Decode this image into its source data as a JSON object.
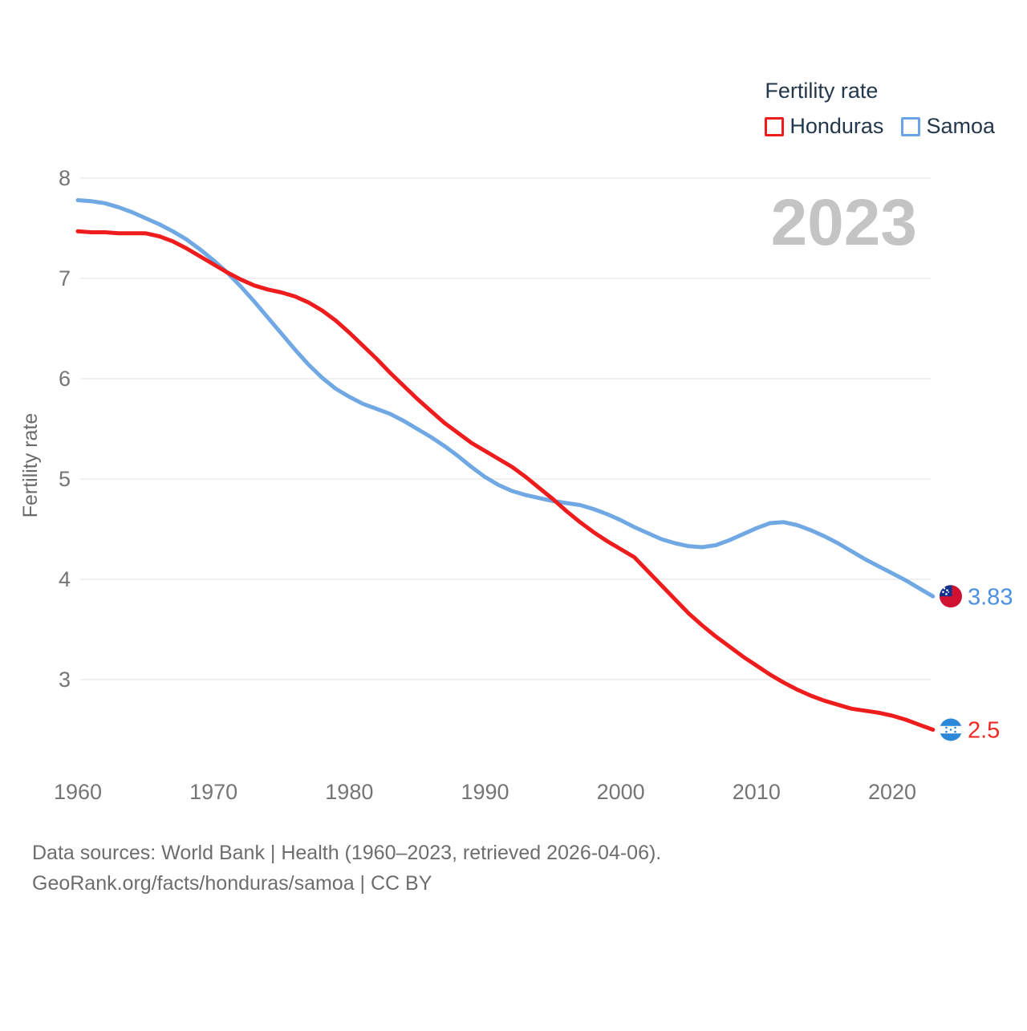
{
  "page": {
    "background": "#ffffff"
  },
  "legend": {
    "title": "Fertility rate",
    "items": [
      {
        "label": "Honduras",
        "color": "#ee1c1c"
      },
      {
        "label": "Samoa",
        "color": "#6aa4e6"
      }
    ]
  },
  "watermark": "2023",
  "footer": {
    "line1": "Data sources: World Bank | Health (1960–2023, retrieved 2026-04-06).",
    "line2": "GeoRank.org/facts/honduras/samoa | CC BY"
  },
  "colors": {
    "gridline": "#ebebeb",
    "tick": "#757575",
    "axis_title": "#6b6b6b",
    "watermark": "#c4c4c4",
    "legend_text": "#24384c",
    "footer_text": "#6d6d6d"
  },
  "chart_data": {
    "type": "line",
    "title": "Fertility rate",
    "ylabel": "Fertility rate",
    "xlabel": "",
    "grid": "horizontal",
    "legend_position": "top-right",
    "year_label": "2023",
    "xlim": [
      1960,
      2023
    ],
    "ylim": [
      2.3,
      8.1
    ],
    "yticks": [
      3,
      4,
      5,
      6,
      7,
      8
    ],
    "xticks": [
      1960,
      1970,
      1980,
      1990,
      2000,
      2010,
      2020
    ],
    "x": [
      1960,
      1961,
      1962,
      1963,
      1964,
      1965,
      1966,
      1967,
      1968,
      1969,
      1970,
      1971,
      1972,
      1973,
      1974,
      1975,
      1976,
      1977,
      1978,
      1979,
      1980,
      1981,
      1982,
      1983,
      1984,
      1985,
      1986,
      1987,
      1988,
      1989,
      1990,
      1991,
      1992,
      1993,
      1994,
      1995,
      1996,
      1997,
      1998,
      1999,
      2000,
      2001,
      2002,
      2003,
      2004,
      2005,
      2006,
      2007,
      2008,
      2009,
      2010,
      2011,
      2012,
      2013,
      2014,
      2015,
      2016,
      2017,
      2018,
      2019,
      2020,
      2021,
      2022,
      2023
    ],
    "series": [
      {
        "name": "Samoa",
        "line_color": "#70a8e4",
        "label_color": "#4a90e2",
        "end_label": "3.83",
        "end_value": 3.83,
        "flag": "samoa",
        "values": [
          7.78,
          7.77,
          7.75,
          7.71,
          7.66,
          7.6,
          7.54,
          7.47,
          7.39,
          7.29,
          7.18,
          7.06,
          6.92,
          6.77,
          6.61,
          6.45,
          6.29,
          6.14,
          6.01,
          5.9,
          5.82,
          5.75,
          5.7,
          5.65,
          5.58,
          5.5,
          5.42,
          5.33,
          5.23,
          5.12,
          5.02,
          4.94,
          4.88,
          4.84,
          4.81,
          4.78,
          4.76,
          4.74,
          4.7,
          4.65,
          4.59,
          4.52,
          4.46,
          4.4,
          4.36,
          4.33,
          4.32,
          4.34,
          4.39,
          4.45,
          4.51,
          4.56,
          4.57,
          4.54,
          4.49,
          4.43,
          4.36,
          4.28,
          4.2,
          4.13,
          4.06,
          3.99,
          3.91,
          3.83
        ]
      },
      {
        "name": "Honduras",
        "line_color": "#ee1c1c",
        "label_color": "#ee2a24",
        "end_label": "2.5",
        "end_value": 2.5,
        "flag": "honduras",
        "values": [
          7.47,
          7.46,
          7.46,
          7.45,
          7.45,
          7.45,
          7.42,
          7.37,
          7.3,
          7.22,
          7.14,
          7.06,
          6.99,
          6.93,
          6.89,
          6.86,
          6.82,
          6.76,
          6.68,
          6.58,
          6.46,
          6.33,
          6.2,
          6.06,
          5.93,
          5.8,
          5.68,
          5.56,
          5.46,
          5.36,
          5.28,
          5.2,
          5.12,
          5.02,
          4.91,
          4.8,
          4.68,
          4.57,
          4.47,
          4.38,
          4.3,
          4.22,
          4.08,
          3.94,
          3.8,
          3.66,
          3.54,
          3.43,
          3.33,
          3.23,
          3.14,
          3.05,
          2.97,
          2.9,
          2.84,
          2.79,
          2.75,
          2.71,
          2.69,
          2.67,
          2.64,
          2.6,
          2.55,
          2.5
        ]
      }
    ],
    "flag_colors": {
      "samoa": {
        "field": "#d01131",
        "canton": "#10328c",
        "stars": "#ffffff"
      },
      "honduras": {
        "band": "#2b87d8",
        "middle": "#ffffff",
        "stars": "#2b87d8"
      }
    }
  }
}
